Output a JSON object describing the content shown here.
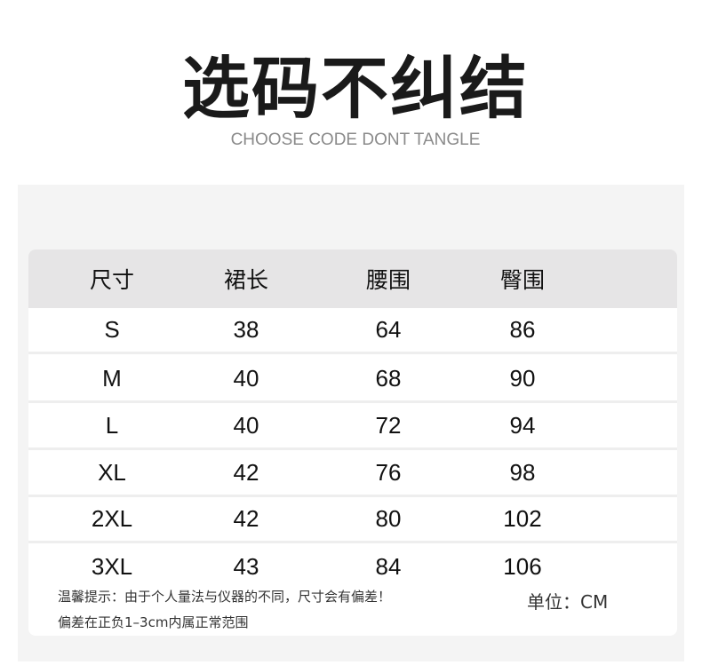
{
  "title": "选码不纠结",
  "subtitle": "CHOOSE CODE DONT TANGLE",
  "table": {
    "headers": [
      "尺寸",
      "裙长",
      "腰围",
      "臀围"
    ],
    "rows": [
      [
        "S",
        "38",
        "64",
        "86"
      ],
      [
        "M",
        "40",
        "68",
        "90"
      ],
      [
        "L",
        "40",
        "72",
        "94"
      ],
      [
        "XL",
        "42",
        "76",
        "98"
      ],
      [
        "2XL",
        "42",
        "80",
        "102"
      ],
      [
        "3XL",
        "43",
        "84",
        "106"
      ]
    ]
  },
  "notes": [
    "温馨提示：由于个人量法与仪器的不同，尺寸会有偏差！",
    "偏差在正负1–3cm内属正常范围"
  ],
  "unit": "单位：CM"
}
